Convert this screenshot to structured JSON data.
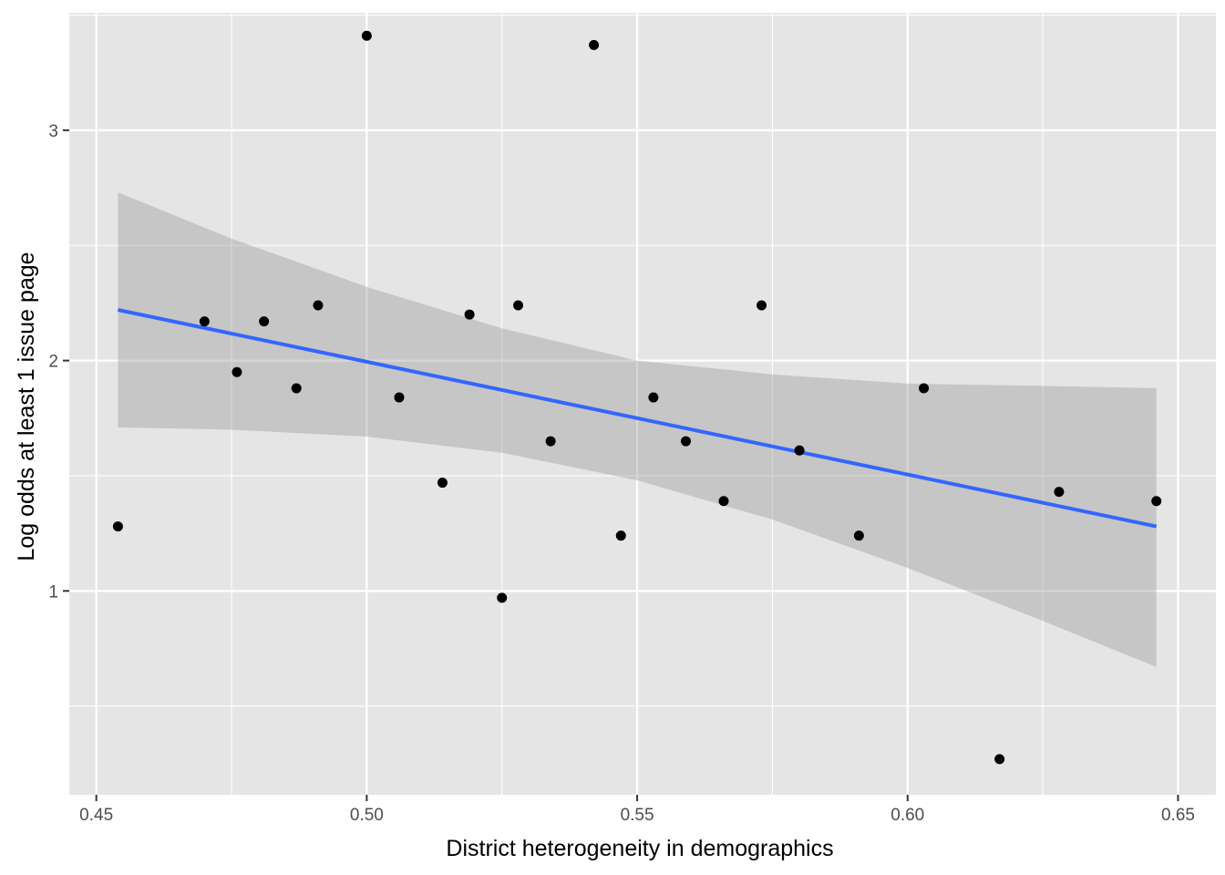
{
  "chart_data": {
    "type": "scatter",
    "xlabel": "District heterogeneity in demographics",
    "ylabel": "Log odds at least 1 issue page",
    "xlim": [
      0.445,
      0.657
    ],
    "ylim": [
      0.115,
      3.51
    ],
    "x_ticks": [
      0.45,
      0.5,
      0.55,
      0.6,
      0.65
    ],
    "x_tick_labels": [
      "0.45",
      "0.50",
      "0.55",
      "0.60",
      "0.65"
    ],
    "y_ticks": [
      1,
      2,
      3
    ],
    "y_tick_labels": [
      "1",
      "2",
      "3"
    ],
    "grid": true,
    "points": [
      {
        "x": 0.454,
        "y": 1.28
      },
      {
        "x": 0.47,
        "y": 2.17
      },
      {
        "x": 0.476,
        "y": 1.95
      },
      {
        "x": 0.481,
        "y": 2.17
      },
      {
        "x": 0.487,
        "y": 1.88
      },
      {
        "x": 0.491,
        "y": 2.24
      },
      {
        "x": 0.5,
        "y": 3.41
      },
      {
        "x": 0.506,
        "y": 1.84
      },
      {
        "x": 0.514,
        "y": 1.47
      },
      {
        "x": 0.519,
        "y": 2.2
      },
      {
        "x": 0.525,
        "y": 0.97
      },
      {
        "x": 0.528,
        "y": 2.24
      },
      {
        "x": 0.534,
        "y": 1.65
      },
      {
        "x": 0.542,
        "y": 3.37
      },
      {
        "x": 0.547,
        "y": 1.24
      },
      {
        "x": 0.553,
        "y": 1.84
      },
      {
        "x": 0.559,
        "y": 1.65
      },
      {
        "x": 0.566,
        "y": 1.39
      },
      {
        "x": 0.573,
        "y": 2.24
      },
      {
        "x": 0.58,
        "y": 1.61
      },
      {
        "x": 0.591,
        "y": 1.24
      },
      {
        "x": 0.603,
        "y": 1.88
      },
      {
        "x": 0.617,
        "y": 0.27
      },
      {
        "x": 0.628,
        "y": 1.43
      },
      {
        "x": 0.646,
        "y": 1.39
      }
    ],
    "fit_line": {
      "x": [
        0.454,
        0.646
      ],
      "y": [
        2.22,
        1.28
      ]
    },
    "confidence_band": {
      "x": [
        0.454,
        0.475,
        0.5,
        0.525,
        0.55,
        0.575,
        0.6,
        0.625,
        0.646
      ],
      "upper": [
        2.73,
        2.53,
        2.32,
        2.14,
        2.0,
        1.94,
        1.9,
        1.89,
        1.88
      ],
      "lower": [
        1.71,
        1.7,
        1.67,
        1.6,
        1.48,
        1.31,
        1.1,
        0.87,
        0.67
      ]
    },
    "colors": {
      "panel": "#e5e5e5",
      "grid_major": "#ffffff",
      "points": "#000000",
      "fit_line": "#3366ff",
      "band": "#999999"
    }
  }
}
